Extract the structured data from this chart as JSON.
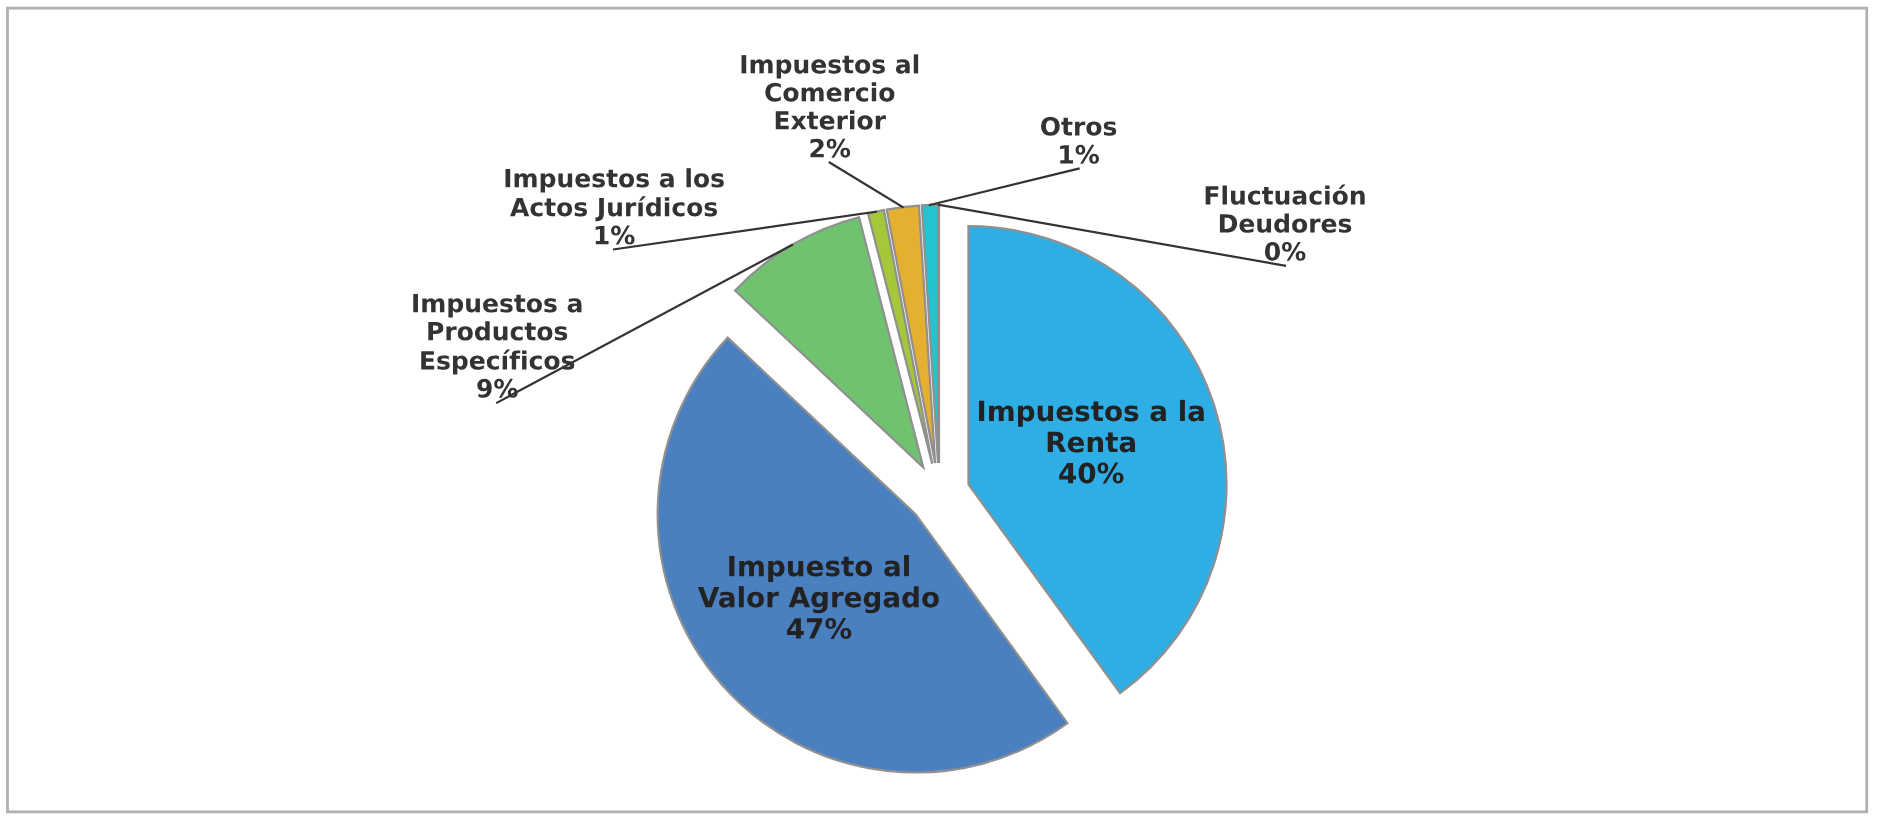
{
  "chart_data": {
    "type": "pie",
    "categories": [
      "Impuestos a la\nRenta",
      "Impuesto al\nValor Agregado",
      "Impuestos a\nProductos\nEspecíficos",
      "Impuestos a los\nActos Jurídicos",
      "Impuestos al\nComercio\nExterior",
      "Otros",
      "Fluctuación\nDeudores"
    ],
    "values": [
      40,
      47,
      9,
      1,
      2,
      1,
      0
    ],
    "value_labels": [
      "40%",
      "47%",
      "9%",
      "1%",
      "2%",
      "1%",
      "0%"
    ],
    "colors": [
      "#2eaee4",
      "#4a7fc0",
      "#6fc36f",
      "#a5c83a",
      "#e5b02f",
      "#25c3cf",
      "#a0a4a8"
    ]
  }
}
